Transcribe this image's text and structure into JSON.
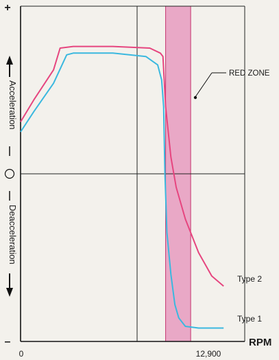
{
  "chart_data": {
    "type": "line",
    "xlabel": "RPM",
    "x_ticks": [
      "0",
      "12,900"
    ],
    "xlim": [
      0,
      17000
    ],
    "y_axis": {
      "top_label": "+",
      "bottom_label": "–",
      "positive_label": "Acceleration",
      "negative_label": "Deacceleration",
      "zero_marker": "○"
    },
    "ylim": [
      -1,
      1
    ],
    "grid": true,
    "red_zone": {
      "label": "RED ZONE",
      "x_range": [
        11000,
        12900
      ],
      "color": "#e9a8c6"
    },
    "series": [
      {
        "name": "Type 2",
        "color": "#e6457f",
        "points": [
          [
            0,
            0.31
          ],
          [
            1000,
            0.44
          ],
          [
            2500,
            0.62
          ],
          [
            3000,
            0.75
          ],
          [
            4000,
            0.76
          ],
          [
            7000,
            0.76
          ],
          [
            9800,
            0.75
          ],
          [
            10600,
            0.72
          ],
          [
            10800,
            0.7
          ],
          [
            11000,
            0.4
          ],
          [
            11400,
            0.1
          ],
          [
            11800,
            -0.08
          ],
          [
            12500,
            -0.27
          ],
          [
            13500,
            -0.47
          ],
          [
            14500,
            -0.61
          ],
          [
            15400,
            -0.67
          ]
        ]
      },
      {
        "name": "Type 1",
        "color": "#3ab8df",
        "points": [
          [
            0,
            0.25
          ],
          [
            1000,
            0.37
          ],
          [
            2500,
            0.54
          ],
          [
            3500,
            0.71
          ],
          [
            4000,
            0.72
          ],
          [
            7000,
            0.72
          ],
          [
            9500,
            0.7
          ],
          [
            10400,
            0.65
          ],
          [
            10700,
            0.56
          ],
          [
            10850,
            0.4
          ],
          [
            10950,
            0.0
          ],
          [
            11100,
            -0.35
          ],
          [
            11400,
            -0.6
          ],
          [
            11700,
            -0.78
          ],
          [
            12000,
            -0.86
          ],
          [
            12500,
            -0.91
          ],
          [
            13500,
            -0.92
          ],
          [
            15400,
            -0.92
          ]
        ]
      }
    ]
  }
}
